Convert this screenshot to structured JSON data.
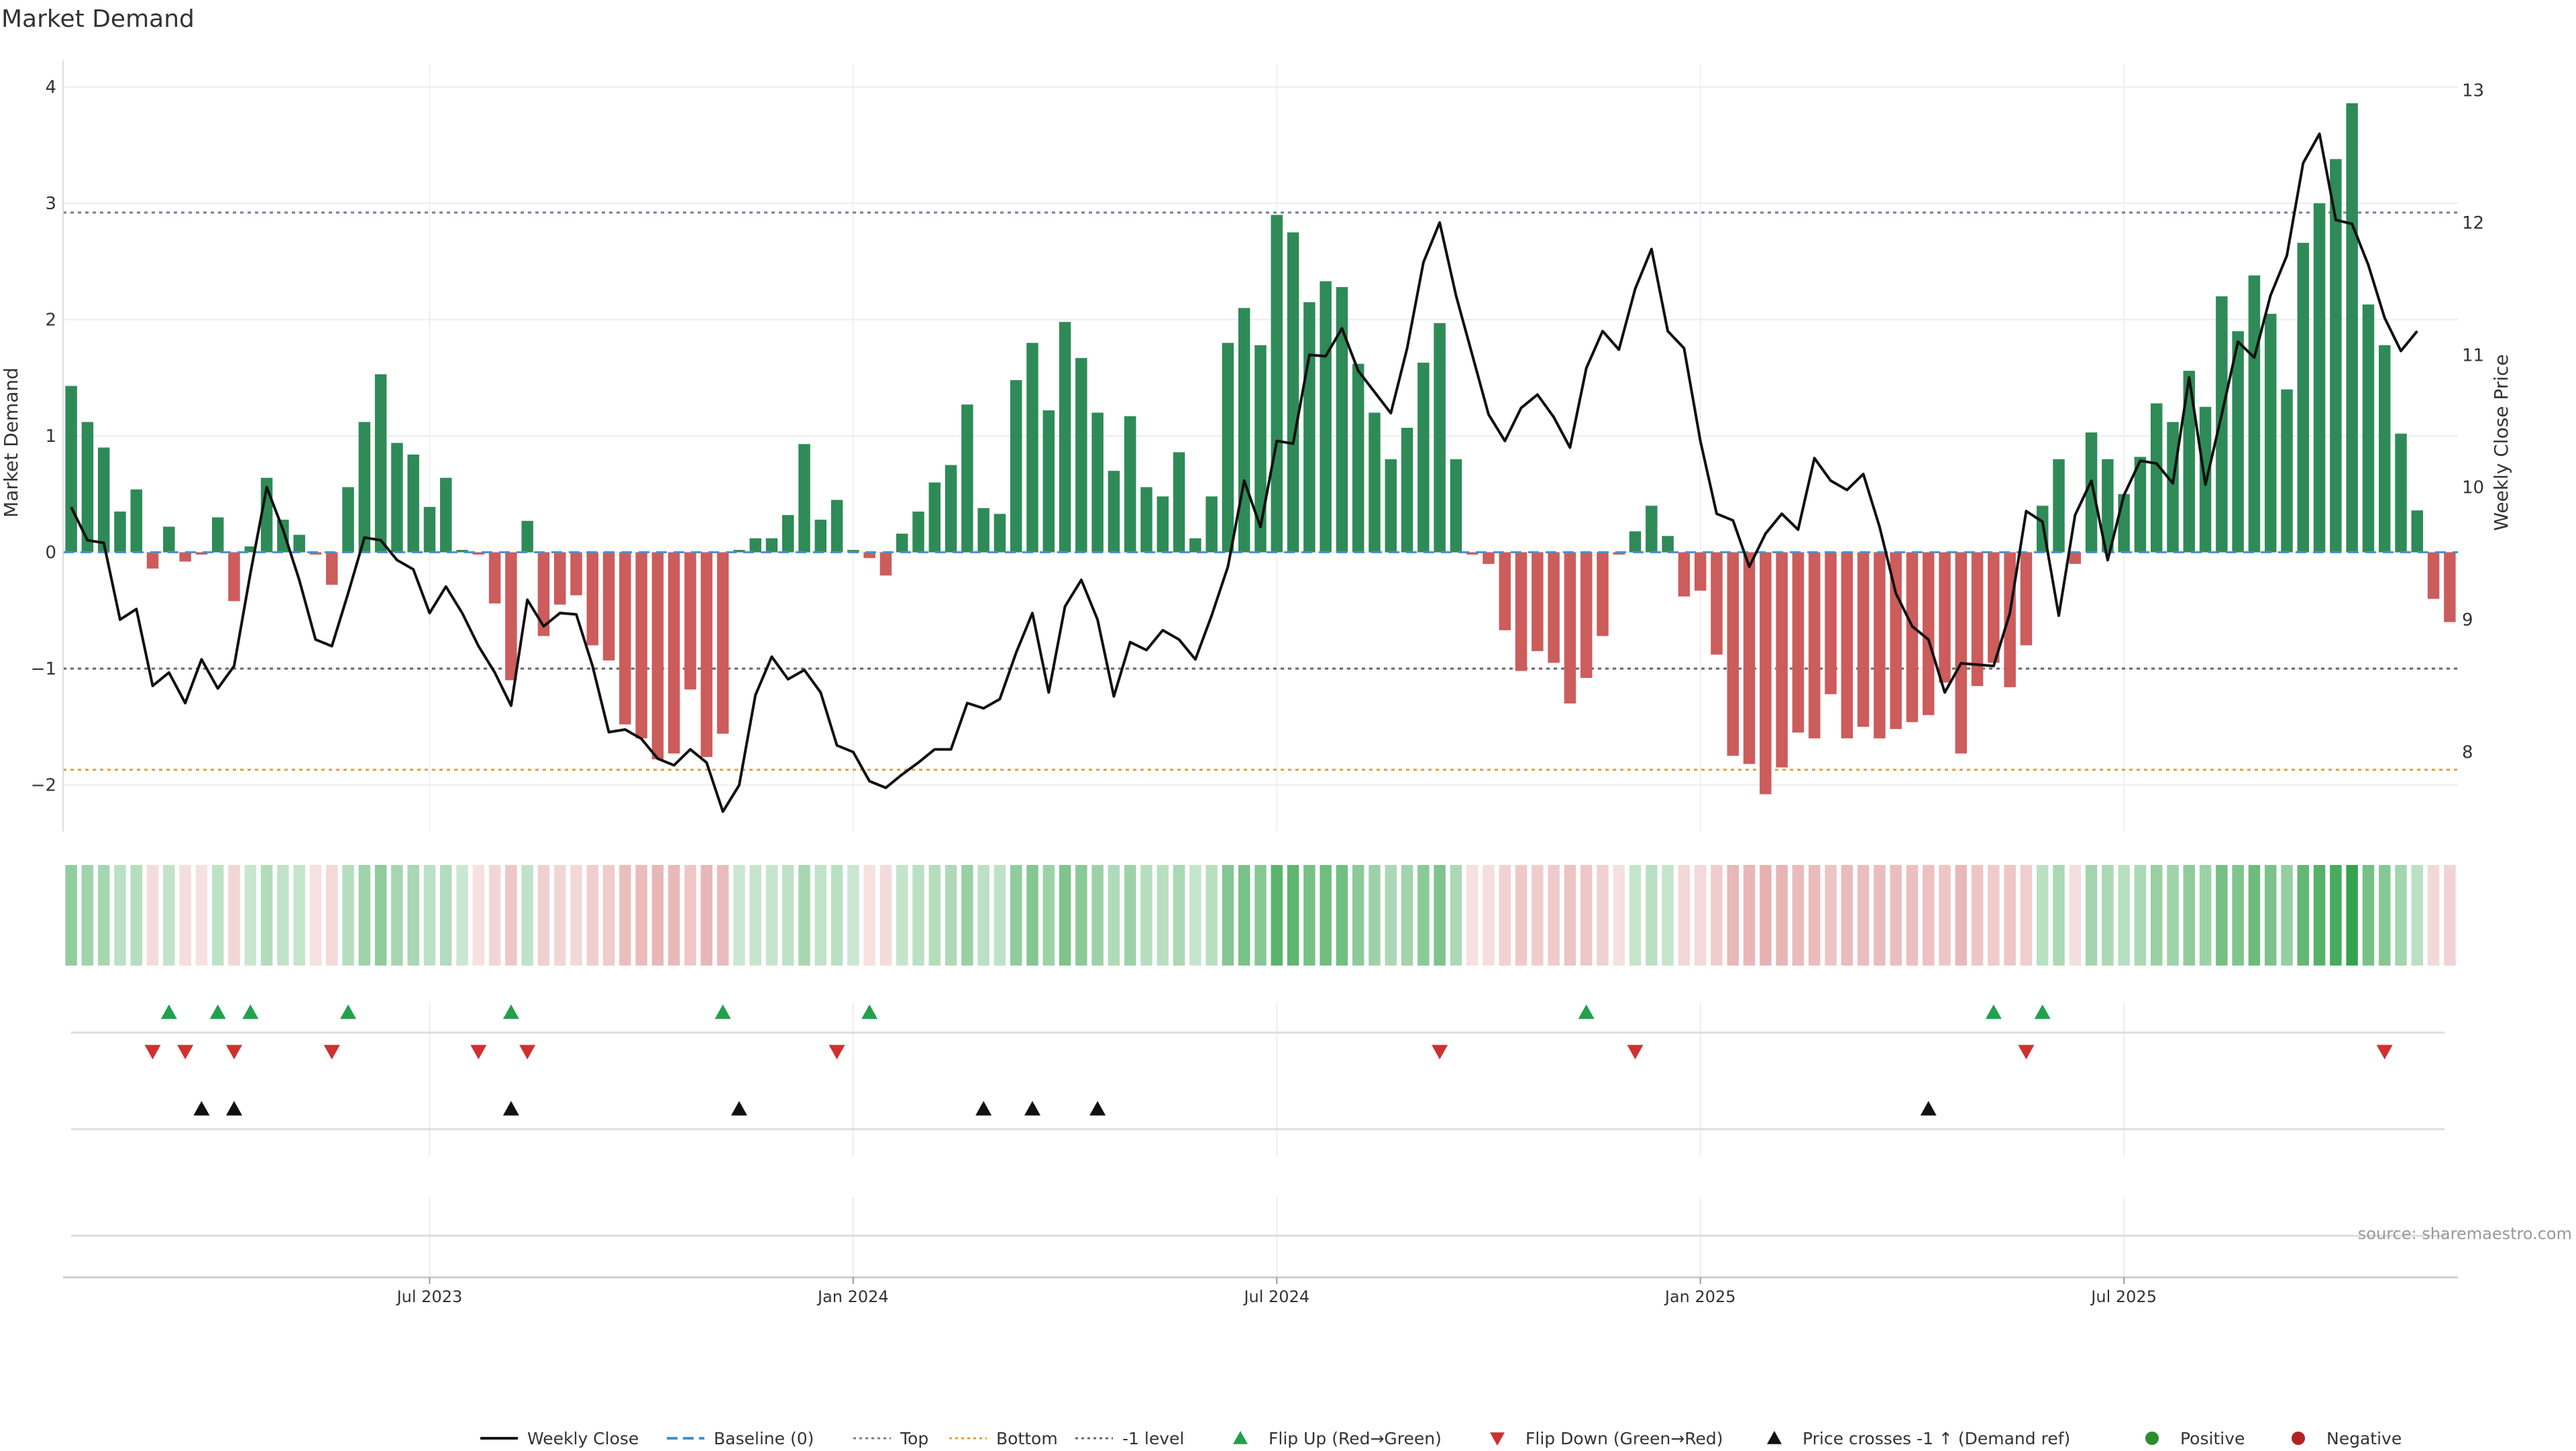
{
  "chart_data": {
    "type": "bar",
    "title": "Market Demand",
    "ylabel": "Market Demand",
    "y2label": "Weekly Close Price",
    "ylim": [
      -2.4,
      4.2
    ],
    "y2lim": [
      7.4,
      13.2
    ],
    "yticks": [
      -2,
      -1,
      0,
      1,
      2,
      3,
      4
    ],
    "y2ticks": [
      8,
      9,
      10,
      11,
      12,
      13
    ],
    "xticks": [
      {
        "label": "Jul 2023",
        "index": 22
      },
      {
        "label": "Jan 2024",
        "index": 48
      },
      {
        "label": "Jul 2024",
        "index": 74
      },
      {
        "label": "Jan 2025",
        "index": 100
      },
      {
        "label": "Jul 2025",
        "index": 126
      }
    ],
    "reference_lines": {
      "top": 2.92,
      "bottom": -1.87,
      "minus_one": -1.0,
      "baseline": 0
    },
    "colors": {
      "positive": "#2e8b57",
      "negative": "#cd5c5c",
      "price": "#111111",
      "top": "#7a7a9a",
      "bottom": "#e0a030",
      "minus_one": "#666666",
      "baseline": "#4a90c8",
      "flip_up": "#22a04b",
      "flip_down": "#d03030",
      "price_cross": "#111111",
      "positive_dot": "#2e8b2e",
      "negative_dot": "#b22222"
    },
    "demand": [
      1.43,
      1.12,
      0.9,
      0.35,
      0.54,
      -0.14,
      0.22,
      -0.08,
      -0.02,
      0.3,
      -0.42,
      0.05,
      0.64,
      0.28,
      0.15,
      -0.02,
      -0.28,
      0.56,
      1.12,
      1.53,
      0.94,
      0.84,
      0.39,
      0.64,
      0.02,
      -0.02,
      -0.44,
      -1.1,
      0.27,
      -0.72,
      -0.45,
      -0.37,
      -0.8,
      -0.93,
      -1.48,
      -1.6,
      -1.78,
      -1.73,
      -1.18,
      -1.76,
      -1.56,
      0.02,
      0.12,
      0.12,
      0.32,
      0.93,
      0.28,
      0.45,
      0.02,
      -0.05,
      -0.2,
      0.16,
      0.35,
      0.6,
      0.75,
      1.27,
      0.38,
      0.33,
      1.48,
      1.8,
      1.22,
      1.98,
      1.67,
      1.2,
      0.7,
      1.17,
      0.56,
      0.48,
      0.86,
      0.12,
      0.48,
      1.8,
      2.1,
      1.78,
      2.9,
      2.75,
      2.15,
      2.33,
      2.28,
      1.62,
      1.2,
      0.8,
      1.07,
      1.63,
      1.97,
      0.8,
      -0.02,
      -0.1,
      -0.67,
      -1.02,
      -0.85,
      -0.95,
      -1.3,
      -1.08,
      -0.72,
      -0.02,
      0.18,
      0.4,
      0.14,
      -0.38,
      -0.33,
      -0.88,
      -1.75,
      -1.82,
      -2.08,
      -1.85,
      -1.55,
      -1.6,
      -1.22,
      -1.6,
      -1.5,
      -1.6,
      -1.52,
      -1.46,
      -1.4,
      -1.12,
      -1.73,
      -1.15,
      -0.95,
      -1.16,
      -0.8,
      0.4,
      0.8,
      -0.1,
      1.03,
      0.8,
      0.5,
      0.82,
      1.28,
      1.12,
      1.56,
      1.25,
      2.2,
      1.9,
      2.38,
      2.05,
      1.4,
      2.66,
      3.0,
      3.38,
      3.86,
      2.13,
      1.78,
      1.02,
      0.36,
      -0.4,
      -0.6
    ],
    "price": [
      9.85,
      9.6,
      9.58,
      9.0,
      9.08,
      8.5,
      8.6,
      8.37,
      8.7,
      8.48,
      8.65,
      9.35,
      10.0,
      9.68,
      9.3,
      8.85,
      8.8,
      9.2,
      9.62,
      9.6,
      9.45,
      9.38,
      9.05,
      9.25,
      9.05,
      8.8,
      8.6,
      8.35,
      9.15,
      8.95,
      9.05,
      9.04,
      8.65,
      8.15,
      8.17,
      8.1,
      7.95,
      7.9,
      8.02,
      7.92,
      7.55,
      7.75,
      8.43,
      8.72,
      8.55,
      8.62,
      8.45,
      8.05,
      8.0,
      7.78,
      7.73,
      7.83,
      7.92,
      8.02,
      8.02,
      8.37,
      8.33,
      8.4,
      8.75,
      9.05,
      8.45,
      9.1,
      9.3,
      9.0,
      8.42,
      8.83,
      8.77,
      8.92,
      8.85,
      8.7,
      9.03,
      9.4,
      10.05,
      9.7,
      10.35,
      10.33,
      11.0,
      10.99,
      11.2,
      10.88,
      10.72,
      10.56,
      11.05,
      11.7,
      12.0,
      11.45,
      11.0,
      10.55,
      10.35,
      10.6,
      10.7,
      10.53,
      10.3,
      10.9,
      11.18,
      11.04,
      11.5,
      11.8,
      11.18,
      11.05,
      10.35,
      9.8,
      9.75,
      9.4,
      9.65,
      9.8,
      9.68,
      10.22,
      10.05,
      9.98,
      10.1,
      9.7,
      9.2,
      8.95,
      8.85,
      8.45,
      8.67,
      8.66,
      8.65,
      9.05,
      9.82,
      9.74,
      9.03,
      9.79,
      10.05,
      9.45,
      9.94,
      10.2,
      10.18,
      10.03,
      10.83,
      10.02,
      10.55,
      11.1,
      10.98,
      11.45,
      11.75,
      12.45,
      12.67,
      12.02,
      11.99,
      11.68,
      11.28,
      11.03,
      11.18
    ],
    "flip_up": [
      6,
      9,
      11,
      17,
      27,
      40,
      49,
      93,
      118,
      121
    ],
    "flip_down": [
      5,
      7,
      10,
      16,
      25,
      28,
      47,
      84,
      96,
      120,
      142
    ],
    "price_cross": [
      8,
      10,
      27,
      41,
      56,
      59,
      63,
      114
    ],
    "watermark": "source: sharemaestro.com",
    "legend": [
      {
        "label": "Weekly Close",
        "marker": "line"
      },
      {
        "label": "Baseline (0)",
        "marker": "dash"
      },
      {
        "label": "Top",
        "marker": "dot-gray"
      },
      {
        "label": "Bottom",
        "marker": "dot-orange"
      },
      {
        "label": "-1 level",
        "marker": "dot-dark"
      },
      {
        "label": "Flip Up (Red→Green)",
        "marker": "tri-up-green"
      },
      {
        "label": "Flip Down (Green→Red)",
        "marker": "tri-down-red"
      },
      {
        "label": "Price crosses -1 ↑ (Demand ref)",
        "marker": "tri-up-black"
      },
      {
        "label": "Positive",
        "marker": "dot-green"
      },
      {
        "label": "Negative",
        "marker": "dot-red"
      }
    ]
  }
}
